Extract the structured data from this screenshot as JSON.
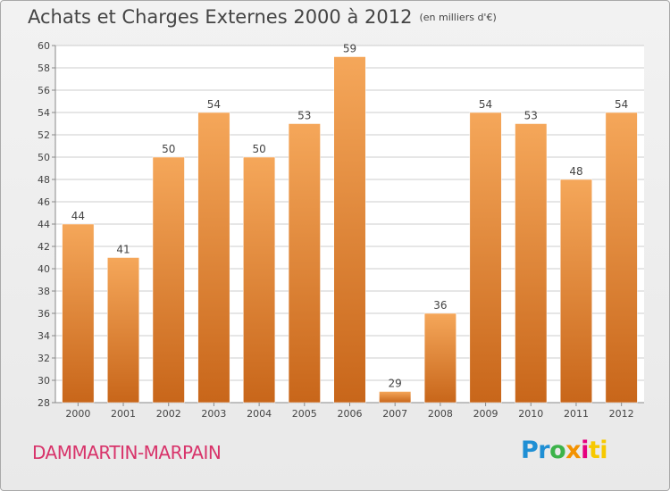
{
  "title": "Achats et Charges Externes 2000 à 2012",
  "unit_note": "(en milliers d'€)",
  "city": "DAMMARTIN-MARPAIN",
  "brand": {
    "p1": "Pr",
    "p2": "o",
    "p3": "x",
    "p4": "i",
    "p5": "ti"
  },
  "colors": {
    "bar_light": "#f5a75a",
    "bar_dark": "#c8661a",
    "grid": "#cccccc",
    "text": "#444444",
    "city": "#d8336a"
  },
  "chart_data": {
    "type": "bar",
    "categories": [
      "2000",
      "2001",
      "2002",
      "2003",
      "2004",
      "2005",
      "2006",
      "2007",
      "2008",
      "2009",
      "2010",
      "2011",
      "2012"
    ],
    "values": [
      44,
      41,
      50,
      54,
      50,
      53,
      59,
      29,
      36,
      54,
      53,
      48,
      54
    ],
    "ylim": [
      28,
      60
    ],
    "yticks": [
      28,
      30,
      32,
      34,
      36,
      38,
      40,
      42,
      44,
      46,
      48,
      50,
      52,
      54,
      56,
      58,
      60
    ],
    "grid": true,
    "data_labels": true
  }
}
